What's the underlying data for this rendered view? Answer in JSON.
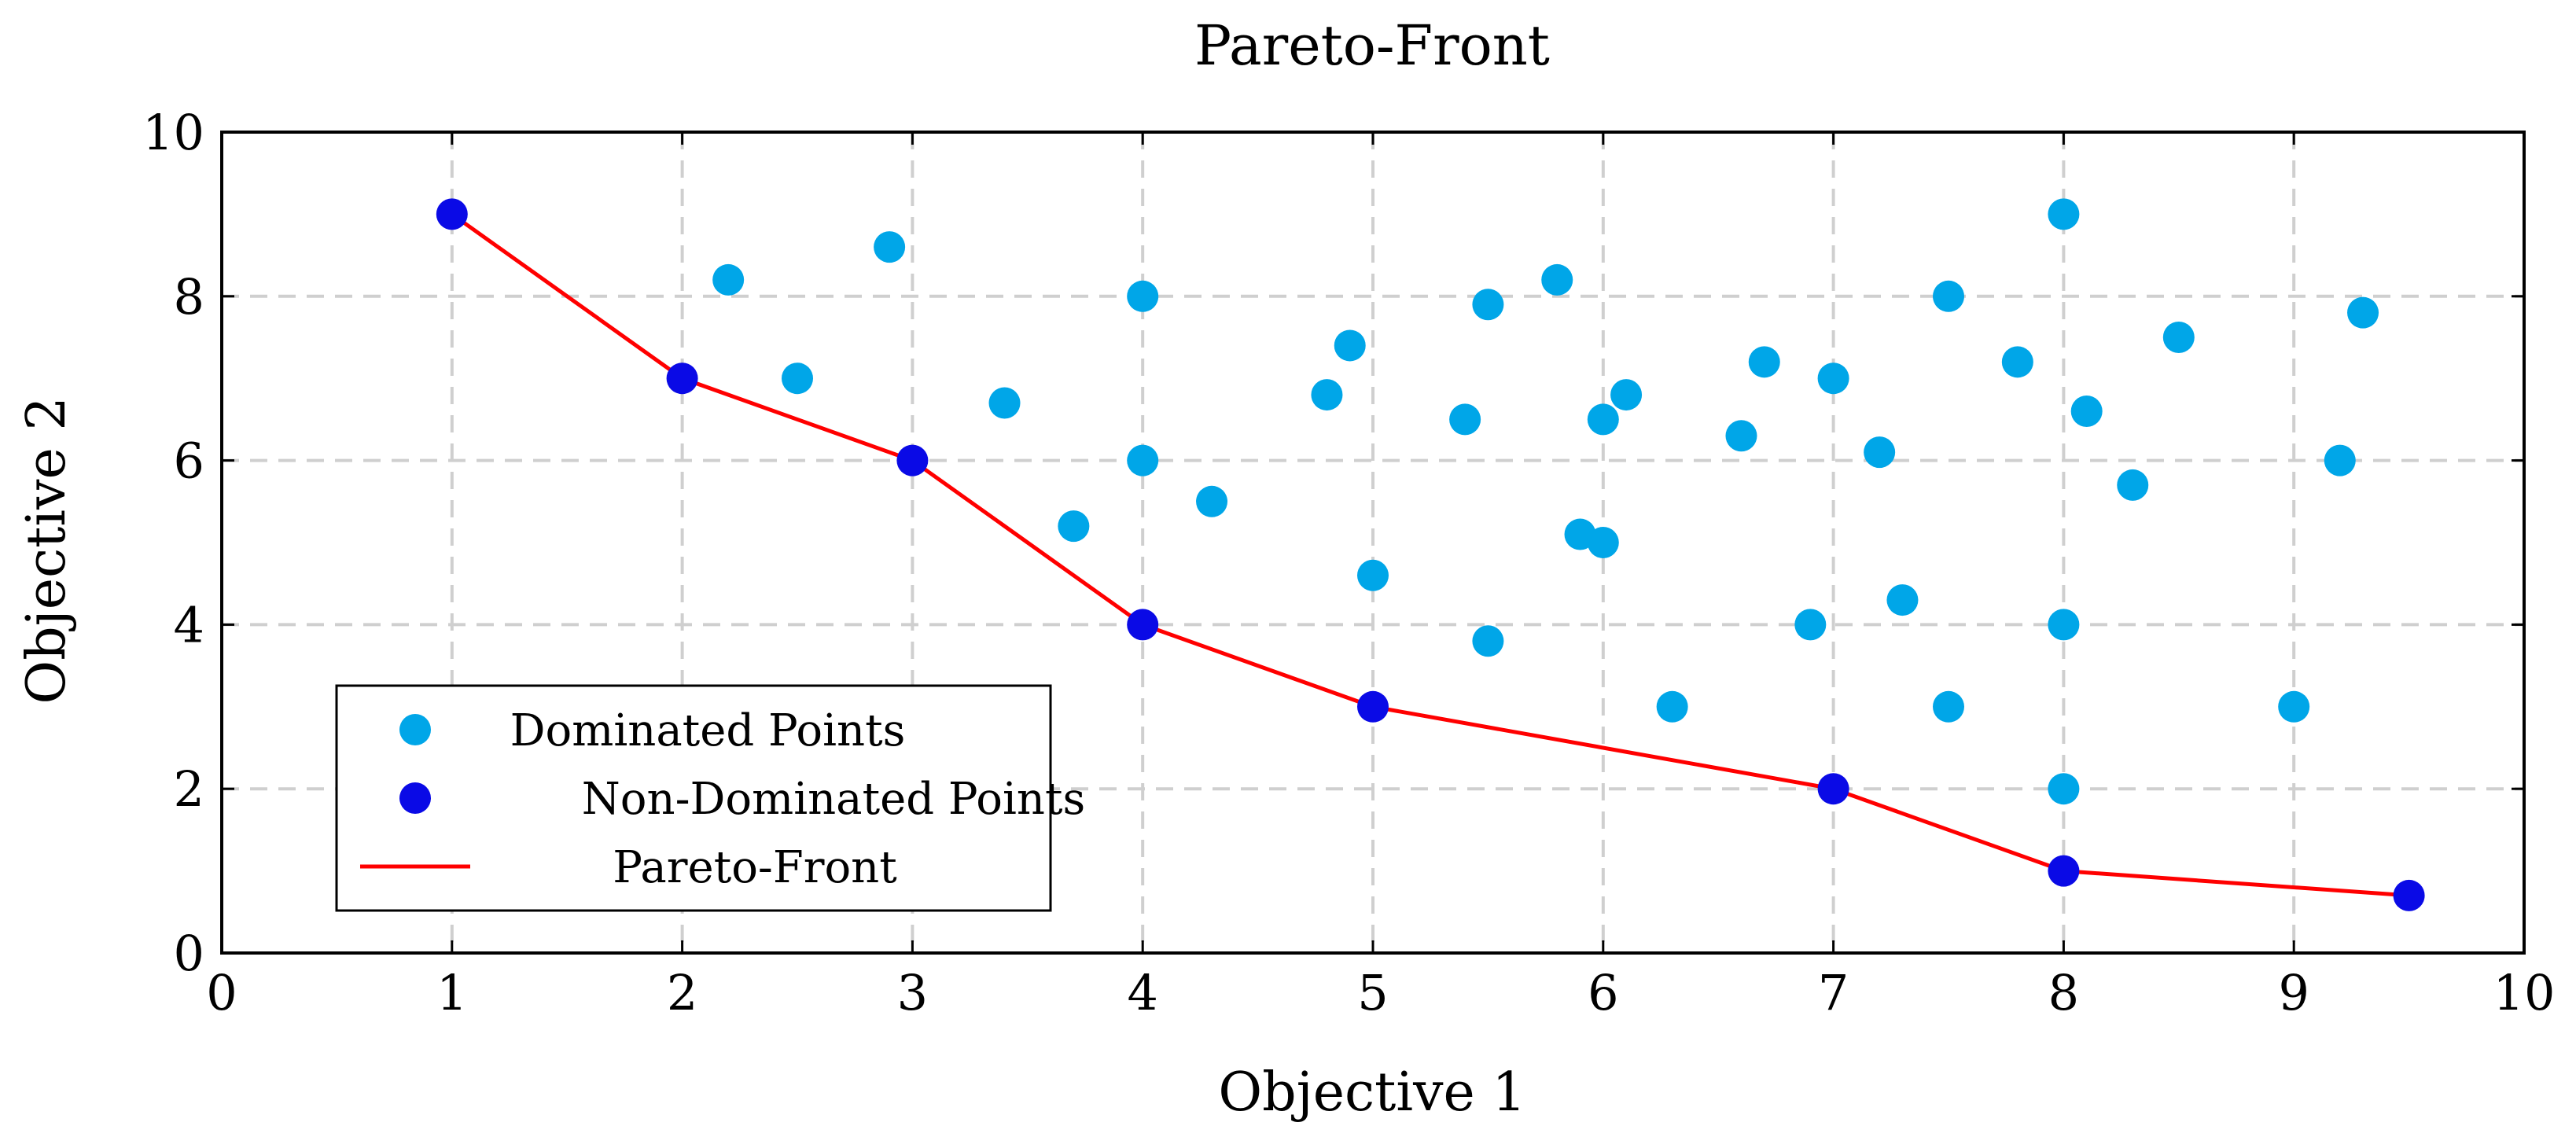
{
  "chart_data": {
    "type": "scatter",
    "title": "Pareto-Front",
    "xlabel": "Objective 1",
    "ylabel": "Objective 2",
    "xlim": [
      0,
      10
    ],
    "ylim": [
      0,
      10
    ],
    "xticks": [
      "0",
      "1",
      "2",
      "3",
      "4",
      "5",
      "6",
      "7",
      "8",
      "9",
      "10"
    ],
    "yticks": [
      "0",
      "2",
      "4",
      "6",
      "8",
      "10"
    ],
    "grid": true,
    "legend_position": "bottom-left",
    "series": [
      {
        "name": "Dominated Points",
        "kind": "scatter",
        "color": "#00a6e8",
        "points": [
          [
            2.2,
            8.2
          ],
          [
            2.5,
            7.0
          ],
          [
            2.9,
            8.6
          ],
          [
            3.4,
            6.7
          ],
          [
            3.7,
            5.2
          ],
          [
            4.0,
            8.0
          ],
          [
            4.0,
            6.0
          ],
          [
            4.3,
            5.5
          ],
          [
            4.8,
            6.8
          ],
          [
            4.9,
            7.4
          ],
          [
            5.0,
            4.6
          ],
          [
            5.4,
            6.5
          ],
          [
            5.5,
            7.9
          ],
          [
            5.5,
            3.8
          ],
          [
            5.8,
            8.2
          ],
          [
            5.9,
            5.1
          ],
          [
            6.0,
            6.5
          ],
          [
            6.0,
            5.0
          ],
          [
            6.1,
            6.8
          ],
          [
            6.3,
            3.0
          ],
          [
            6.6,
            6.3
          ],
          [
            6.7,
            7.2
          ],
          [
            6.9,
            4.0
          ],
          [
            7.0,
            7.0
          ],
          [
            7.2,
            6.1
          ],
          [
            7.3,
            4.3
          ],
          [
            7.5,
            8.0
          ],
          [
            7.5,
            3.0
          ],
          [
            7.8,
            7.2
          ],
          [
            8.0,
            9.0
          ],
          [
            8.0,
            4.0
          ],
          [
            8.0,
            2.0
          ],
          [
            8.1,
            6.6
          ],
          [
            8.3,
            5.7
          ],
          [
            8.5,
            7.5
          ],
          [
            9.0,
            3.0
          ],
          [
            9.2,
            6.0
          ],
          [
            9.3,
            7.8
          ]
        ]
      },
      {
        "name": "Non-Dominated Points",
        "kind": "scatter",
        "color": "#0a0ae6",
        "points": [
          [
            1,
            9
          ],
          [
            2,
            7
          ],
          [
            3,
            6
          ],
          [
            4,
            4
          ],
          [
            5,
            3
          ],
          [
            7,
            2
          ],
          [
            8,
            1
          ],
          [
            9.5,
            0.7
          ]
        ]
      },
      {
        "name": "Pareto-Front",
        "kind": "line",
        "color": "#ff0000",
        "points": [
          [
            1,
            9
          ],
          [
            2,
            7
          ],
          [
            3,
            6
          ],
          [
            4,
            4
          ],
          [
            5,
            3
          ],
          [
            7,
            2
          ],
          [
            8,
            1
          ],
          [
            9.5,
            0.7
          ]
        ]
      }
    ]
  }
}
